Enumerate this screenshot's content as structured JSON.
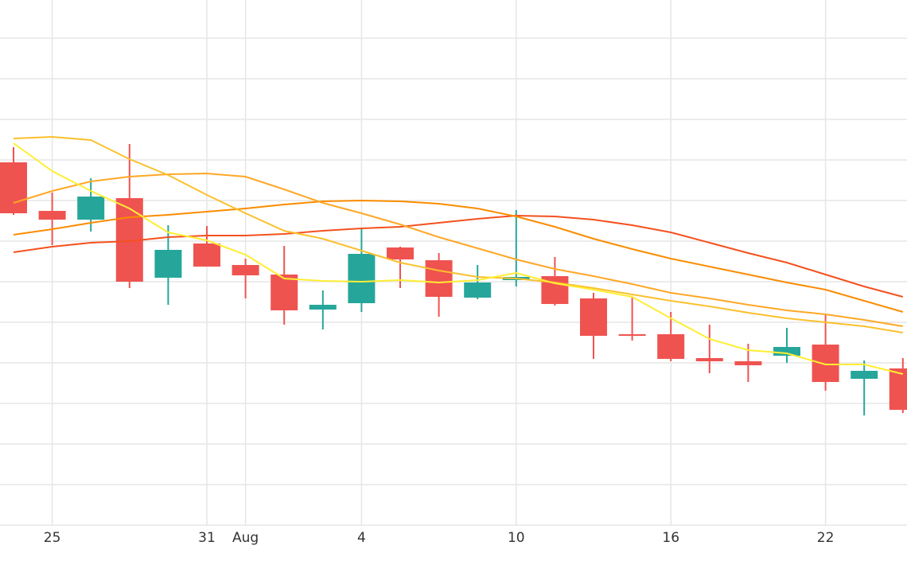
{
  "chart_data": {
    "type": "candlestick",
    "categories": [
      null,
      "25",
      null,
      null,
      null,
      "31",
      "Aug",
      null,
      null,
      "4",
      null,
      null,
      null,
      "10",
      null,
      null,
      null,
      "16",
      null,
      null,
      null,
      "22",
      null,
      null
    ],
    "open": [
      456,
      395,
      384,
      411,
      311,
      354,
      327,
      315,
      271,
      279,
      349,
      333,
      286,
      308,
      313,
      285,
      240,
      240,
      210,
      206,
      213,
      227,
      184,
      197
    ],
    "high": [
      475,
      418,
      436,
      479,
      377,
      376,
      335,
      351,
      295,
      372,
      350,
      342,
      327,
      396,
      337,
      292,
      286,
      268,
      252,
      228,
      248,
      264,
      207,
      210
    ],
    "low": [
      390,
      352,
      369,
      298,
      277,
      325,
      285,
      252,
      246,
      268,
      298,
      262,
      284,
      300,
      276,
      209,
      232,
      206,
      191,
      180,
      204,
      169,
      138,
      141
    ],
    "close": [
      392,
      384,
      413,
      306,
      346,
      325,
      314,
      270,
      277,
      341,
      334,
      287,
      305,
      312,
      278,
      238,
      238,
      209,
      206,
      201,
      224,
      180,
      194,
      145
    ],
    "up_color": "#26a69a",
    "down_color": "#ef5350",
    "series": [
      {
        "color": "#f4511e",
        "values": [
          343,
          350,
          355,
          357,
          362,
          364,
          364,
          366,
          370,
          373,
          375,
          380,
          385,
          389,
          388,
          384,
          377,
          368,
          355,
          342,
          330,
          315,
          300,
          287
        ]
      },
      {
        "color": "#fb8c00",
        "values": [
          365,
          372,
          380,
          387,
          390,
          394,
          398,
          403,
          407,
          408,
          407,
          404,
          398,
          388,
          375,
          360,
          347,
          335,
          325,
          315,
          305,
          296,
          282,
          268
        ]
      },
      {
        "color": "#ffa726",
        "values": [
          405,
          420,
          432,
          438,
          441,
          442,
          438,
          422,
          405,
          392,
          378,
          362,
          348,
          334,
          322,
          313,
          303,
          292,
          285,
          277,
          270,
          265,
          258,
          250
        ]
      },
      {
        "color": "#fbc02d",
        "values": [
          486,
          488,
          484,
          460,
          440,
          415,
          392,
          370,
          360,
          345,
          330,
          320,
          312,
          310,
          305,
          298,
          290,
          282,
          275,
          267,
          260,
          255,
          250,
          242
        ]
      },
      {
        "color": "#ffee33",
        "values": [
          480,
          445,
          420,
          398,
          368,
          358,
          340,
          310,
          307,
          306,
          308,
          305,
          308,
          317,
          304,
          296,
          287,
          260,
          234,
          220,
          216,
          202,
          202,
          190
        ]
      }
    ],
    "ylim": [
      0,
      660
    ],
    "yticks": [
      0,
      51,
      102,
      153,
      204,
      255,
      306,
      357,
      408,
      459,
      510,
      561,
      612
    ],
    "grid": true
  }
}
